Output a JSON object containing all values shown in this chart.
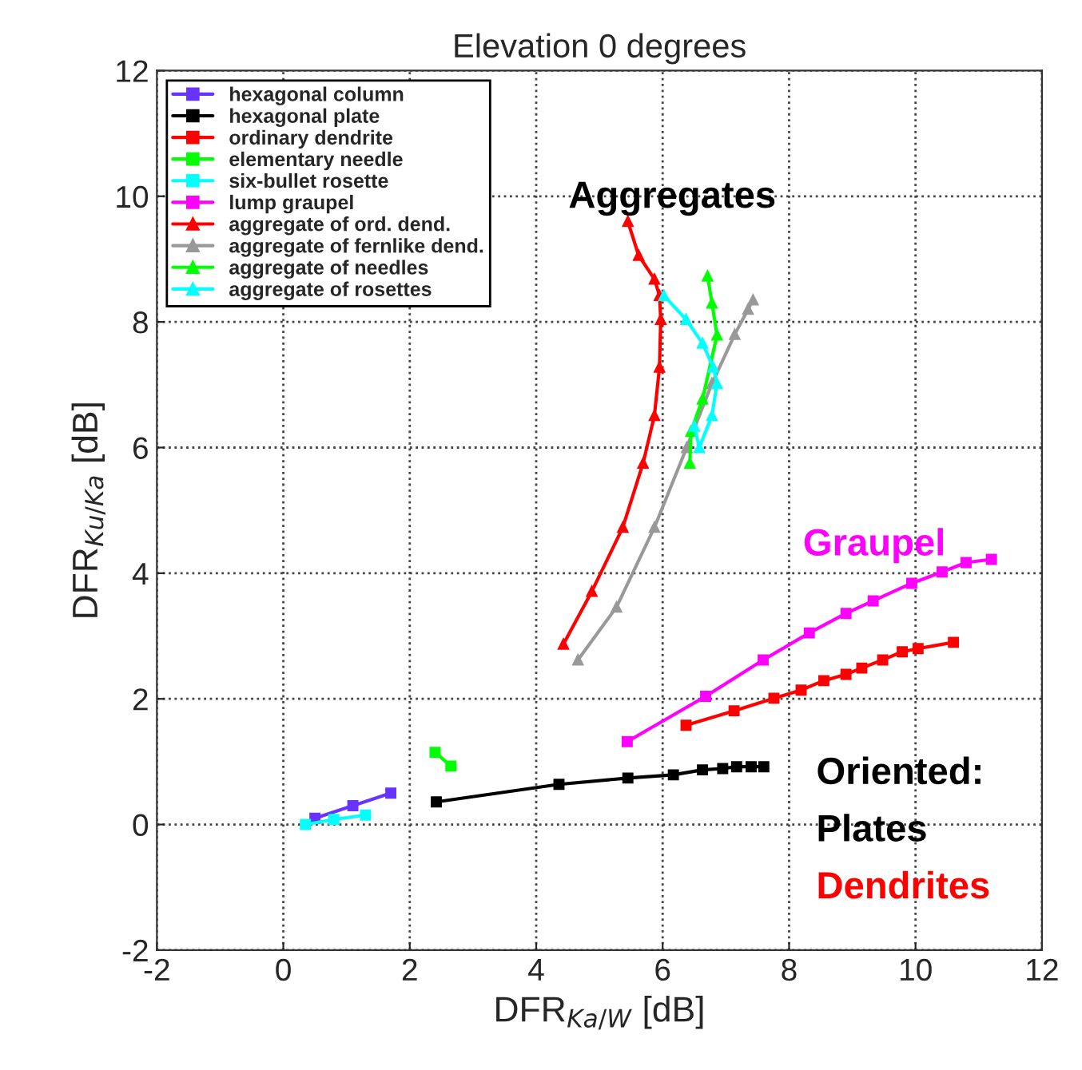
{
  "chart_data": {
    "type": "line",
    "title": "Elevation 0 degrees",
    "xlabel": "DFR$_{Ka/W}$ [dB]",
    "ylabel": "DFR$_{Ku/Ka}$ [dB]",
    "xlim": [
      -2,
      12
    ],
    "ylim": [
      -2,
      12
    ],
    "xticks": [
      -2,
      0,
      2,
      4,
      6,
      8,
      10,
      12
    ],
    "yticks": [
      -2,
      0,
      2,
      4,
      6,
      8,
      10,
      12
    ],
    "grid": true,
    "legend": "top left",
    "series": [
      {
        "name": "hexagonal column",
        "color": "#6633ff",
        "marker": "square",
        "x": [
          0.5,
          1.1,
          1.7
        ],
        "values": [
          0.1,
          0.3,
          0.5
        ]
      },
      {
        "name": "hexagonal plate",
        "color": "#000000",
        "marker": "square",
        "x": [
          2.42,
          4.36,
          5.45,
          6.17,
          6.63,
          6.95,
          7.17,
          7.4,
          7.6
        ],
        "values": [
          0.36,
          0.64,
          0.74,
          0.79,
          0.87,
          0.89,
          0.92,
          0.92,
          0.92
        ]
      },
      {
        "name": "ordinary dendrite",
        "color": "#ff0000",
        "marker": "square",
        "x": [
          6.37,
          7.13,
          7.76,
          8.19,
          8.55,
          8.9,
          9.15,
          9.48,
          9.79,
          10.04,
          10.6
        ],
        "values": [
          1.58,
          1.81,
          2.01,
          2.14,
          2.29,
          2.39,
          2.49,
          2.62,
          2.75,
          2.8,
          2.9
        ]
      },
      {
        "name": "elementary needle",
        "color": "#00ff00",
        "marker": "square",
        "x": [
          2.4,
          2.65
        ],
        "values": [
          1.15,
          0.93
        ]
      },
      {
        "name": "six-bullet rosette",
        "color": "#00ffff",
        "marker": "square",
        "x": [
          0.35,
          0.8,
          1.3
        ],
        "values": [
          0.0,
          0.08,
          0.15
        ]
      },
      {
        "name": "lump graupel",
        "color": "#ff00ff",
        "marker": "square",
        "x": [
          5.44,
          6.68,
          7.59,
          8.32,
          8.9,
          9.33,
          9.94,
          10.42,
          10.8,
          11.2
        ],
        "values": [
          1.32,
          2.04,
          2.62,
          3.05,
          3.36,
          3.56,
          3.84,
          4.02,
          4.17,
          4.22
        ]
      },
      {
        "name": "aggregate of ord. dend.",
        "color": "#ff0000",
        "marker": "triangle",
        "x": [
          4.43,
          4.88,
          5.37,
          5.69,
          5.87,
          5.95,
          5.97,
          5.95,
          5.87,
          5.62,
          5.45
        ],
        "values": [
          2.87,
          3.71,
          4.73,
          5.75,
          6.51,
          7.28,
          8.04,
          8.42,
          8.68,
          9.06,
          9.6
        ]
      },
      {
        "name": "aggregate of fernlike dend.",
        "color": "#999999",
        "marker": "triangle",
        "x": [
          4.66,
          5.27,
          5.87,
          6.38,
          6.78,
          7.14,
          7.35,
          7.43
        ],
        "values": [
          2.62,
          3.46,
          4.73,
          6.0,
          7.02,
          7.8,
          8.2,
          8.35
        ]
      },
      {
        "name": "aggregate of needles",
        "color": "#00ff00",
        "marker": "triangle",
        "x": [
          6.43,
          6.45,
          6.63,
          6.86,
          6.78,
          6.71
        ],
        "values": [
          5.75,
          6.26,
          6.77,
          7.79,
          8.3,
          8.73
        ]
      },
      {
        "name": "aggregate of rosettes",
        "color": "#00ffff",
        "marker": "triangle",
        "x": [
          6.02,
          6.37,
          6.63,
          6.8,
          6.86,
          6.78,
          6.58,
          6.5
        ],
        "values": [
          8.42,
          8.04,
          7.66,
          7.28,
          7.02,
          6.51,
          6.0,
          6.34
        ]
      }
    ],
    "annotations": [
      "Aggregates",
      "Graupel",
      "Oriented:",
      "Plates",
      "Dendrites"
    ]
  }
}
